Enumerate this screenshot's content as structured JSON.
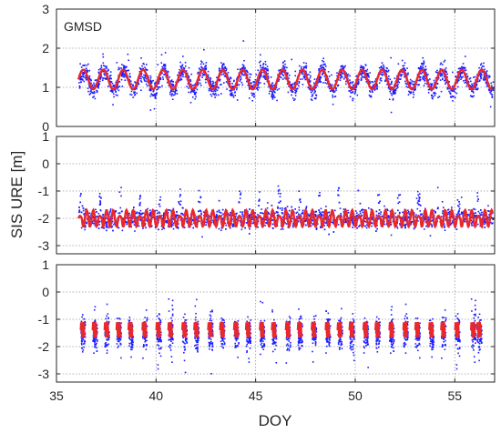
{
  "figure": {
    "ylabel": "SIS URE [m]",
    "xlabel": "DOY",
    "colors": {
      "scatter": "#1c1cff",
      "model": "#e8282c",
      "axis": "#262626",
      "grid": "#9a9a9a"
    }
  },
  "chart_data": [
    {
      "type": "scatter",
      "annotation": "GMSD",
      "xlim": [
        35,
        57
      ],
      "ylim": [
        0,
        3
      ],
      "yticks": [
        0,
        1,
        2,
        3
      ],
      "xticks": [
        35,
        40,
        45,
        50,
        55
      ],
      "grid": true,
      "data_range_x": [
        36.1,
        56.9
      ],
      "series": [
        {
          "kind": "scatter",
          "description": "SIS URE samples",
          "approx_center": 1.3,
          "approx_spread": [
            0.5,
            2.3
          ]
        },
        {
          "kind": "line",
          "description": "fitted sinusoid",
          "period_days": 1.0,
          "mean": 1.2,
          "amplitude": 0.25
        }
      ]
    },
    {
      "type": "scatter",
      "xlim": [
        35,
        57
      ],
      "ylim": [
        -3.3,
        1
      ],
      "yticks": [
        -3,
        -2,
        -1,
        0,
        1
      ],
      "xticks": [
        35,
        40,
        45,
        50,
        55
      ],
      "grid": true,
      "data_range_x": [
        36.1,
        56.9
      ],
      "series": [
        {
          "kind": "scatter",
          "description": "SIS URE samples",
          "approx_center": -2.0,
          "approx_spread": [
            -3.0,
            -0.8
          ]
        },
        {
          "kind": "line",
          "description": "fitted pattern",
          "period_days": 1.0,
          "mean": -2.0,
          "amplitude": 0.3
        }
      ]
    },
    {
      "type": "scatter",
      "xlim": [
        35,
        57
      ],
      "ylim": [
        -3.3,
        1
      ],
      "yticks": [
        -3,
        -2,
        -1,
        0,
        1
      ],
      "xticks": [
        35,
        40,
        45,
        50,
        55
      ],
      "xticklabels": [
        "35",
        "40",
        "45",
        "50",
        "55"
      ],
      "grid": true,
      "segment_starts_doy": [
        36.2,
        36.8,
        37.4,
        38.0,
        38.6,
        39.3,
        40.0,
        40.6,
        41.3,
        41.9,
        42.6,
        43.2,
        43.9,
        44.5,
        45.2,
        45.8,
        46.5,
        47.1,
        47.8,
        48.5,
        49.1,
        49.7,
        50.4,
        51.0,
        51.7,
        52.4,
        53.0,
        53.7,
        54.3,
        55.0,
        55.8,
        56.1
      ],
      "series": [
        {
          "kind": "scatter",
          "description": "SIS URE samples (intermittent)",
          "approx_center": -1.5,
          "approx_spread": [
            -3.2,
            0.3
          ]
        },
        {
          "kind": "line",
          "description": "fitted pattern (intermittent)",
          "mean": -1.4,
          "amplitude": 0.3
        }
      ]
    }
  ]
}
